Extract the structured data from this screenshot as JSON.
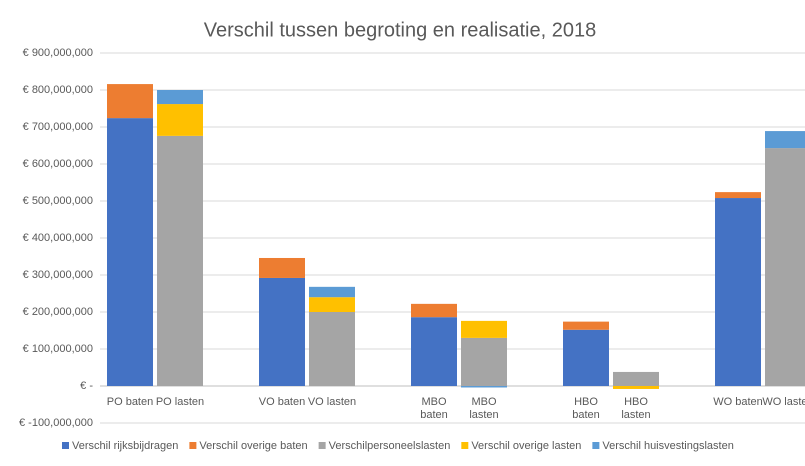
{
  "chart_data": {
    "type": "stacked-bar",
    "title": "Verschil tussen begroting en realisatie, 2018",
    "categories": [
      "PO baten",
      "PO lasten",
      "VO baten",
      "VO lasten",
      "MBO baten",
      "MBO lasten",
      "HBO baten",
      "HBO lasten",
      "WO baten",
      "WO lasten"
    ],
    "series": [
      {
        "name": "Verschil rijksbijdragen",
        "color": "#4472c4",
        "values": [
          724000000,
          null,
          292000000,
          null,
          186000000,
          null,
          152000000,
          null,
          508000000,
          null
        ]
      },
      {
        "name": "Verschil overige baten",
        "color": "#ed7d31",
        "values": [
          92000000,
          null,
          54000000,
          null,
          36000000,
          null,
          22000000,
          null,
          16000000,
          null
        ]
      },
      {
        "name": "Verschilpersoneelslasten",
        "color": "#a5a5a5",
        "values": [
          null,
          676000000,
          null,
          200000000,
          null,
          130000000,
          null,
          38000000,
          null,
          643000000
        ]
      },
      {
        "name": "Verschil overige lasten",
        "color": "#ffc000",
        "values": [
          null,
          86000000,
          null,
          40000000,
          null,
          46000000,
          null,
          -8000000,
          null,
          0
        ]
      },
      {
        "name": "Verschil huisvestingslasten",
        "color": "#5b9bd5",
        "values": [
          null,
          38000000,
          null,
          28000000,
          null,
          -4000000,
          null,
          0,
          null,
          46000000
        ]
      }
    ],
    "ylim": [
      -100000000,
      900000000
    ],
    "yticks": [
      {
        "value": -100000000,
        "label": "€ -100,000,000"
      },
      {
        "value": 0,
        "label": "€ -"
      },
      {
        "value": 100000000,
        "label": "€ 100,000,000"
      },
      {
        "value": 200000000,
        "label": "€ 200,000,000"
      },
      {
        "value": 300000000,
        "label": "€ 300,000,000"
      },
      {
        "value": 400000000,
        "label": "€ 400,000,000"
      },
      {
        "value": 500000000,
        "label": "€ 500,000,000"
      },
      {
        "value": 600000000,
        "label": "€ 600,000,000"
      },
      {
        "value": 700000000,
        "label": "€ 700,000,000"
      },
      {
        "value": 800000000,
        "label": "€ 800,000,000"
      },
      {
        "value": 900000000,
        "label": "€ 900,000,000"
      }
    ],
    "grid": true,
    "legend": "bottom"
  }
}
